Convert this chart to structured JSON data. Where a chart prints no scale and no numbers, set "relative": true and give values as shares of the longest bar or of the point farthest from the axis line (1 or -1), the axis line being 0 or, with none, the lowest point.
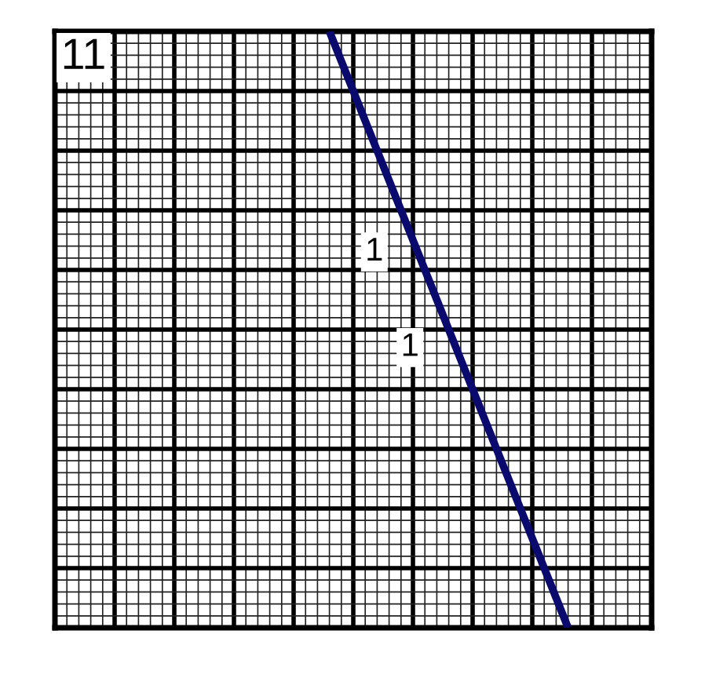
{
  "chart_data": {
    "type": "line",
    "relative": true,
    "categories": [
      null,
      null,
      null,
      null,
      null,
      null,
      null,
      null,
      null,
      null,
      null,
      null,
      null,
      null,
      null,
      null,
      null,
      null,
      null,
      null,
      null,
      null,
      null,
      null,
      null,
      null,
      null,
      null,
      null,
      null,
      null,
      null,
      null,
      null,
      null,
      null,
      null,
      null,
      null,
      null,
      null,
      null,
      null,
      null,
      null,
      null,
      null,
      null,
      null,
      null,
      null
    ],
    "series": [
      {
        "color": "#0a0a6e",
        "values": [
          null,
          null,
          null,
          null,
          null,
          null,
          null,
          null,
          null,
          null,
          null,
          null,
          null,
          null,
          null,
          null,
          null,
          null,
          null,
          null,
          null,
          null,
          null,
          1,
          0.9,
          0.8,
          0.7,
          0.6,
          0.5,
          0.4,
          0.3,
          0.2,
          0.1,
          0,
          -0.1,
          -0.2,
          -0.3,
          -0.4,
          -0.5,
          -0.6,
          -0.7,
          -0.8,
          -0.9,
          -1,
          null,
          null,
          null,
          null,
          null,
          null,
          null
        ]
      }
    ],
    "grid": true,
    "marker": "none",
    "line_style": "solid",
    "annotations": [
      "11",
      "1",
      "1"
    ]
  }
}
